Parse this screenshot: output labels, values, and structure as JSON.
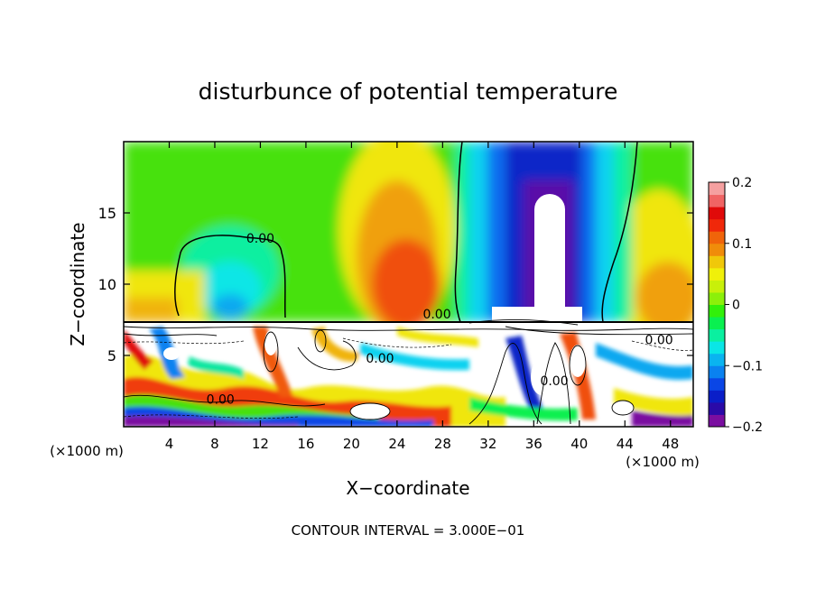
{
  "chart_data": {
    "type": "heatmap",
    "title": "disturbunce of potential temperature",
    "xlabel": "X−coordinate",
    "ylabel": "Z−coordinate",
    "x_unit_left": "(×1000 m)",
    "x_unit_right": "(×1000 m)",
    "footer": "CONTOUR INTERVAL = 3.000E−01",
    "xlim": [
      0,
      50
    ],
    "ylim": [
      0,
      20
    ],
    "x_ticks": [
      4,
      8,
      12,
      16,
      20,
      24,
      28,
      32,
      36,
      40,
      44,
      48
    ],
    "y_ticks": [
      5,
      10,
      15
    ],
    "contour_interval": 0.3,
    "contour_labels": [
      {
        "text": "0.00",
        "x": 12.0,
        "y": 12.9
      },
      {
        "text": "0.00",
        "x": 27.5,
        "y": 7.6
      },
      {
        "text": "0.00",
        "x": 22.5,
        "y": 4.5
      },
      {
        "text": "0.00",
        "x": 8.5,
        "y": 1.6
      },
      {
        "text": "0.00",
        "x": 37.8,
        "y": 2.9
      },
      {
        "text": "0.00",
        "x": 47.0,
        "y": 5.8
      }
    ],
    "colorbar": {
      "min": -0.2,
      "max": 0.2,
      "ticks": [
        "0.2",
        "0.1",
        "0",
        "−0.1",
        "−0.2"
      ],
      "colors": [
        "#7a0ea0",
        "#2a0aa8",
        "#0a1ec8",
        "#0a46e6",
        "#0a82f0",
        "#0ab4f0",
        "#0ae6e6",
        "#0af0a0",
        "#0af050",
        "#32f00a",
        "#8cf00a",
        "#c8f00a",
        "#f0f00a",
        "#f0c80a",
        "#f08c0a",
        "#f0640a",
        "#f0280a",
        "#e00a0a",
        "#f06464",
        "#f5a0a0"
      ]
    }
  }
}
